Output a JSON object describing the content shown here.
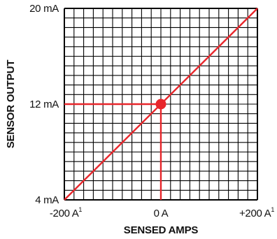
{
  "chart_data": {
    "type": "line",
    "xlabel": "SENSED AMPS",
    "ylabel": "SENSOR OUTPUT",
    "xlim": [
      -200,
      200
    ],
    "ylim": [
      4,
      20
    ],
    "grid": true,
    "x_tick_labels": [
      {
        "value": -200,
        "text": "-200 A",
        "sup": "1"
      },
      {
        "value": 0,
        "text": "0 A",
        "sup": ""
      },
      {
        "value": 200,
        "text": "+200 A",
        "sup": "1"
      }
    ],
    "y_tick_labels": [
      {
        "value": 4,
        "text": "4 mA"
      },
      {
        "value": 12,
        "text": "12 mA"
      },
      {
        "value": 20,
        "text": "20 mA"
      }
    ],
    "series": [
      {
        "x": [
          -200,
          200
        ],
        "y": [
          4,
          20
        ]
      }
    ],
    "highlight_point": {
      "x": 0,
      "y": 12
    },
    "colors": {
      "line": "#e8262b",
      "grid": "#000000",
      "text": "#111111"
    }
  }
}
